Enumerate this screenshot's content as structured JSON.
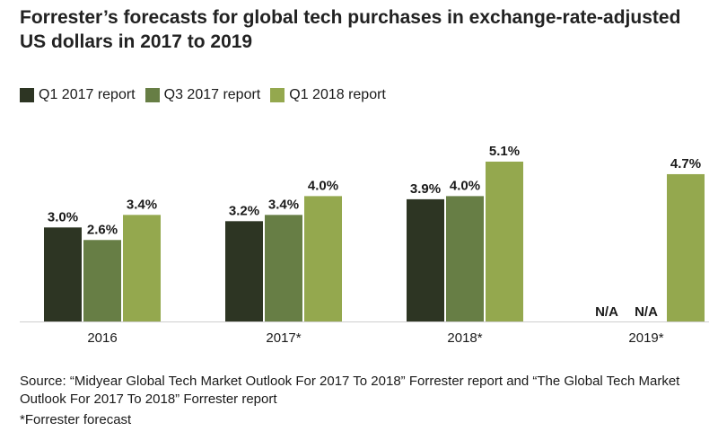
{
  "chart_data": {
    "type": "bar",
    "title": "Forrester’s forecasts for global tech purchases in exchange-rate-adjusted US dollars in 2017 to 2019",
    "categories": [
      "2016",
      "2017*",
      "2018*",
      "2019*"
    ],
    "series": [
      {
        "name": "Q1 2017 report",
        "color": "#2d3523",
        "values": [
          3.0,
          3.2,
          3.9,
          null
        ],
        "labels": [
          "3.0%",
          "3.2%",
          "3.9%",
          "N/A"
        ]
      },
      {
        "name": "Q3 2017 report",
        "color": "#677e45",
        "values": [
          2.6,
          3.4,
          4.0,
          null
        ],
        "labels": [
          "2.6%",
          "3.4%",
          "4.0%",
          "N/A"
        ]
      },
      {
        "name": "Q1 2018 report",
        "color": "#94a84e",
        "values": [
          3.4,
          4.0,
          5.1,
          4.7
        ],
        "labels": [
          "3.4%",
          "4.0%",
          "5.1%",
          "4.7%"
        ]
      }
    ],
    "xlabel": "",
    "ylabel": "",
    "ylim": [
      0,
      5.1
    ],
    "grid": false,
    "legend_position": "top-left"
  },
  "source_text": "Source: “Midyear Global Tech Market Outlook For 2017 To 2018” Forrester report and “The Global Tech Market Outlook For 2017 To 2018” Forrester report",
  "footnote": "*Forrester forecast"
}
